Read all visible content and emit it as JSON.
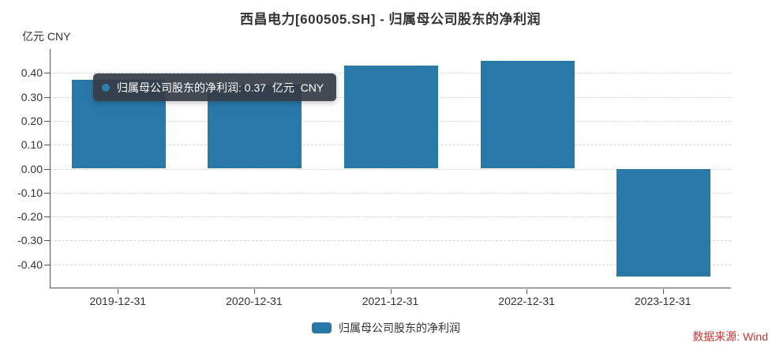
{
  "title": "西昌电力[600505.SH] - 归属母公司股东的净利润",
  "unit_label": "亿元  CNY",
  "source": "数据来源: Wind",
  "tooltip": {
    "label": "归属母公司股东的净利润",
    "value": "0.37",
    "unit": "亿元 CNY",
    "text": "归属母公司股东的净利润: 0.37  亿元  CNY"
  },
  "legend": {
    "label": "归属母公司股东的净利润"
  },
  "colors": {
    "bar": "#2878a8",
    "grid": "#d6d6d6",
    "axis": "#555555",
    "text": "#333333",
    "source_text": "#cc3333",
    "tooltip_bg": "rgba(54,60,70,0.93)"
  },
  "chart_data": {
    "type": "bar",
    "title": "西昌电力[600505.SH] - 归属母公司股东的净利润",
    "ylabel": "亿元 CNY",
    "xlabel": "",
    "categories": [
      "2019-12-31",
      "2020-12-31",
      "2021-12-31",
      "2022-12-31",
      "2023-12-31"
    ],
    "series": [
      {
        "name": "归属母公司股东的净利润",
        "values": [
          0.37,
          0.35,
          0.43,
          0.45,
          -0.45
        ],
        "color": "#2878a8"
      }
    ],
    "ylim": [
      -0.5,
      0.5
    ],
    "ytick_labels": [
      "0.40",
      "0.30",
      "0.20",
      "0.10",
      "0.00",
      "-0.10",
      "-0.20",
      "-0.30",
      "-0.40"
    ],
    "grid": "horizontal-dashed",
    "legend_position": "bottom",
    "tooltip_shown_for": "2019-12-31"
  }
}
